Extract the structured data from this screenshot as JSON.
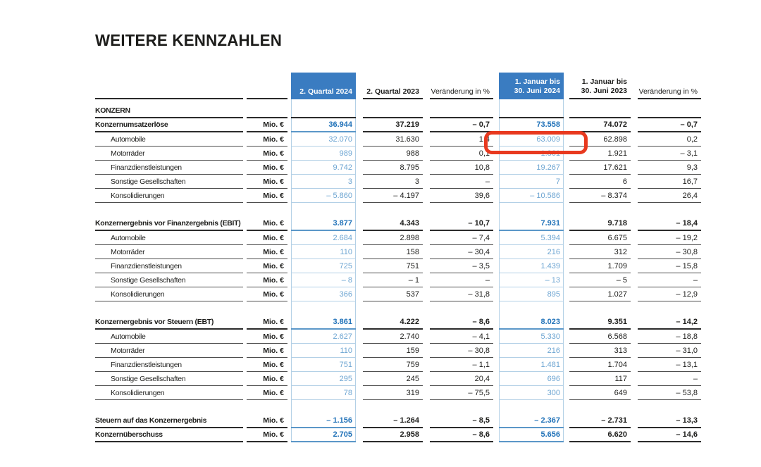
{
  "title": "WEITERE KENNZAHLEN",
  "table": {
    "section_label": "KONZERN",
    "unit_label": "Mio. €",
    "col_headers": [
      {
        "lines": [
          "2. Quartal 2024"
        ],
        "highlight": true
      },
      {
        "lines": [
          "2. Quartal 2023"
        ],
        "highlight": false
      },
      {
        "lines": [
          "Veränderung in %"
        ],
        "highlight": false
      },
      {
        "lines": [
          "1. Januar bis",
          "30. Juni 2024"
        ],
        "highlight": true
      },
      {
        "lines": [
          "1. Januar bis",
          "30. Juni 2023"
        ],
        "highlight": false
      },
      {
        "lines": [
          "Veränderung in %"
        ],
        "highlight": false
      }
    ],
    "groups": [
      {
        "rows": [
          {
            "label": "Konzernumsatzerlöse",
            "bold": true,
            "values": [
              "36.944",
              "37.219",
              "– 0,7",
              "73.558",
              "74.072",
              "– 0,7"
            ]
          },
          {
            "label": "Automobile",
            "bold": false,
            "values": [
              "32.070",
              "31.630",
              "1,4",
              "63.009",
              "62.898",
              "0,2"
            ]
          },
          {
            "label": "Motorräder",
            "bold": false,
            "values": [
              "989",
              "988",
              "0,1",
              "1.861",
              "1.921",
              "– 3,1"
            ]
          },
          {
            "label": "Finanzdienstleistungen",
            "bold": false,
            "values": [
              "9.742",
              "8.795",
              "10,8",
              "19.267",
              "17.621",
              "9,3"
            ]
          },
          {
            "label": "Sonstige Gesellschaften",
            "bold": false,
            "values": [
              "3",
              "3",
              "–",
              "7",
              "6",
              "16,7"
            ]
          },
          {
            "label": "Konsolidierungen",
            "bold": false,
            "values": [
              "– 5.860",
              "– 4.197",
              "39,6",
              "– 10.586",
              "– 8.374",
              "26,4"
            ]
          }
        ]
      },
      {
        "rows": [
          {
            "label": "Konzernergebnis vor Finanzergebnis (EBIT)",
            "bold": true,
            "values": [
              "3.877",
              "4.343",
              "– 10,7",
              "7.931",
              "9.718",
              "– 18,4"
            ]
          },
          {
            "label": "Automobile",
            "bold": false,
            "values": [
              "2.684",
              "2.898",
              "– 7,4",
              "5.394",
              "6.675",
              "– 19,2"
            ]
          },
          {
            "label": "Motorräder",
            "bold": false,
            "values": [
              "110",
              "158",
              "– 30,4",
              "216",
              "312",
              "– 30,8"
            ]
          },
          {
            "label": "Finanzdienstleistungen",
            "bold": false,
            "values": [
              "725",
              "751",
              "– 3,5",
              "1.439",
              "1.709",
              "– 15,8"
            ]
          },
          {
            "label": "Sonstige Gesellschaften",
            "bold": false,
            "values": [
              "– 8",
              "– 1",
              "–",
              "– 13",
              "– 5",
              "–"
            ]
          },
          {
            "label": "Konsolidierungen",
            "bold": false,
            "values": [
              "366",
              "537",
              "– 31,8",
              "895",
              "1.027",
              "– 12,9"
            ]
          }
        ]
      },
      {
        "rows": [
          {
            "label": "Konzernergebnis vor Steuern (EBT)",
            "bold": true,
            "values": [
              "3.861",
              "4.222",
              "– 8,6",
              "8.023",
              "9.351",
              "– 14,2"
            ]
          },
          {
            "label": "Automobile",
            "bold": false,
            "values": [
              "2.627",
              "2.740",
              "– 4,1",
              "5.330",
              "6.568",
              "– 18,8"
            ]
          },
          {
            "label": "Motorräder",
            "bold": false,
            "values": [
              "110",
              "159",
              "– 30,8",
              "216",
              "313",
              "– 31,0"
            ]
          },
          {
            "label": "Finanzdienstleistungen",
            "bold": false,
            "values": [
              "751",
              "759",
              "– 1,1",
              "1.481",
              "1.704",
              "– 13,1"
            ]
          },
          {
            "label": "Sonstige Gesellschaften",
            "bold": false,
            "values": [
              "295",
              "245",
              "20,4",
              "696",
              "117",
              "–"
            ]
          },
          {
            "label": "Konsolidierungen",
            "bold": false,
            "values": [
              "78",
              "319",
              "– 75,5",
              "300",
              "649",
              "– 53,8"
            ]
          }
        ]
      },
      {
        "rows": [
          {
            "label": "Steuern auf das Konzernergebnis",
            "bold": true,
            "values": [
              "– 1.156",
              "– 1.264",
              "– 8,5",
              "– 2.367",
              "– 2.731",
              "– 13,3"
            ]
          },
          {
            "label": "Konzernüberschuss",
            "bold": true,
            "values": [
              "2.705",
              "2.958",
              "– 8,6",
              "5.656",
              "6.620",
              "– 14,6"
            ]
          }
        ]
      }
    ]
  },
  "annotation": {
    "highlighted_value": "63.009",
    "highlighted_row": "Automobile",
    "highlighted_column": "1. Januar bis 30. Juni 2024",
    "color": "#e8391f"
  },
  "colors": {
    "header_blue": "#3a7cc1",
    "value_blue_bold": "#2273b9",
    "value_blue_light": "#6da5d2",
    "column_frame_blue": "#b3d0e6",
    "annotation_red": "#e8391f"
  }
}
